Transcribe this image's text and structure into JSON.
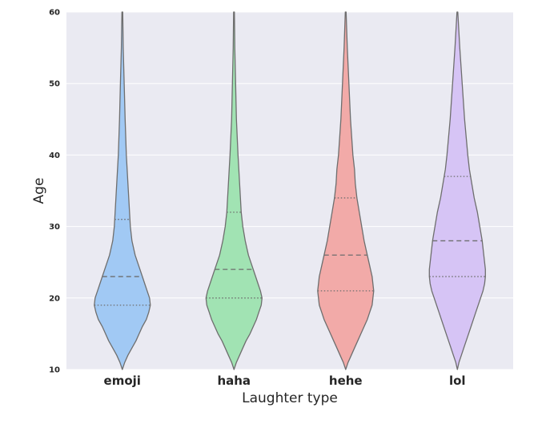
{
  "chart_data": {
    "type": "violin",
    "title": "",
    "xlabel": "Laughter type",
    "ylabel": "Age",
    "ylim": [
      10,
      60
    ],
    "yticks": [
      "10",
      "20",
      "30",
      "40",
      "50",
      "60"
    ],
    "categories": [
      "emoji",
      "haha",
      "hehe",
      "lol"
    ],
    "colors": [
      "#a1c9f4",
      "#a1e3b3",
      "#f2aaa8",
      "#d6c4f5"
    ],
    "background": "#eaeaf2",
    "grid": true,
    "legend": "none",
    "inner": "quartile",
    "series": [
      {
        "category": "emoji",
        "quartiles": {
          "q1": 19,
          "median": 23,
          "q3": 31
        },
        "max_halfwidth": 35,
        "profile": [
          [
            10,
            0
          ],
          [
            11,
            3
          ],
          [
            12,
            7
          ],
          [
            13,
            12
          ],
          [
            14,
            17
          ],
          [
            15,
            21
          ],
          [
            16,
            25
          ],
          [
            17,
            30
          ],
          [
            18,
            33
          ],
          [
            19,
            35
          ],
          [
            20,
            34
          ],
          [
            21,
            31
          ],
          [
            22,
            28
          ],
          [
            23,
            25
          ],
          [
            24,
            22
          ],
          [
            25,
            19
          ],
          [
            26,
            16
          ],
          [
            27,
            14
          ],
          [
            28,
            12
          ],
          [
            30,
            10
          ],
          [
            32,
            9
          ],
          [
            34,
            8
          ],
          [
            36,
            7
          ],
          [
            38,
            6
          ],
          [
            40,
            5
          ],
          [
            45,
            3.5
          ],
          [
            50,
            2.3
          ],
          [
            55,
            1.2
          ],
          [
            60,
            0.5
          ]
        ]
      },
      {
        "category": "haha",
        "quartiles": {
          "q1": 20,
          "median": 24,
          "q3": 32
        },
        "max_halfwidth": 35,
        "profile": [
          [
            10,
            0
          ],
          [
            11,
            3
          ],
          [
            12,
            7
          ],
          [
            13,
            11
          ],
          [
            14,
            15
          ],
          [
            15,
            20
          ],
          [
            16,
            24
          ],
          [
            17,
            28
          ],
          [
            18,
            31
          ],
          [
            19,
            34
          ],
          [
            20,
            35
          ],
          [
            21,
            33
          ],
          [
            22,
            30
          ],
          [
            23,
            27
          ],
          [
            24,
            24
          ],
          [
            25,
            21
          ],
          [
            26,
            18
          ],
          [
            27,
            16
          ],
          [
            28,
            14
          ],
          [
            30,
            11
          ],
          [
            32,
            9
          ],
          [
            34,
            8
          ],
          [
            36,
            7
          ],
          [
            38,
            6
          ],
          [
            40,
            5
          ],
          [
            45,
            3
          ],
          [
            50,
            2
          ],
          [
            55,
            1
          ],
          [
            60,
            0.5
          ]
        ]
      },
      {
        "category": "hehe",
        "quartiles": {
          "q1": 21,
          "median": 26,
          "q3": 34
        },
        "max_halfwidth": 35,
        "profile": [
          [
            10,
            0
          ],
          [
            11,
            3
          ],
          [
            12,
            7
          ],
          [
            13,
            11
          ],
          [
            14,
            15
          ],
          [
            15,
            19
          ],
          [
            16,
            23
          ],
          [
            17,
            27
          ],
          [
            18,
            30
          ],
          [
            19,
            33
          ],
          [
            20,
            34
          ],
          [
            21,
            35
          ],
          [
            22,
            34
          ],
          [
            23,
            33
          ],
          [
            24,
            31
          ],
          [
            25,
            29
          ],
          [
            26,
            27
          ],
          [
            27,
            25
          ],
          [
            28,
            23
          ],
          [
            30,
            20
          ],
          [
            32,
            17
          ],
          [
            34,
            14
          ],
          [
            36,
            12
          ],
          [
            38,
            11
          ],
          [
            40,
            9
          ],
          [
            45,
            6
          ],
          [
            50,
            4
          ],
          [
            55,
            2
          ],
          [
            60,
            0.5
          ]
        ]
      },
      {
        "category": "lol",
        "quartiles": {
          "q1": 23,
          "median": 28,
          "q3": 37
        },
        "max_halfwidth": 35,
        "profile": [
          [
            10,
            0
          ],
          [
            11,
            2
          ],
          [
            12,
            5
          ],
          [
            13,
            8
          ],
          [
            14,
            11
          ],
          [
            15,
            14
          ],
          [
            16,
            17
          ],
          [
            17,
            20
          ],
          [
            18,
            23
          ],
          [
            19,
            26
          ],
          [
            20,
            29
          ],
          [
            21,
            32
          ],
          [
            22,
            34
          ],
          [
            23,
            35
          ],
          [
            24,
            35
          ],
          [
            25,
            34
          ],
          [
            26,
            33
          ],
          [
            27,
            32
          ],
          [
            28,
            31
          ],
          [
            30,
            28
          ],
          [
            32,
            25
          ],
          [
            34,
            21
          ],
          [
            36,
            18
          ],
          [
            38,
            15
          ],
          [
            40,
            13
          ],
          [
            45,
            9
          ],
          [
            50,
            6
          ],
          [
            55,
            3
          ],
          [
            60,
            0.5
          ]
        ]
      }
    ]
  }
}
